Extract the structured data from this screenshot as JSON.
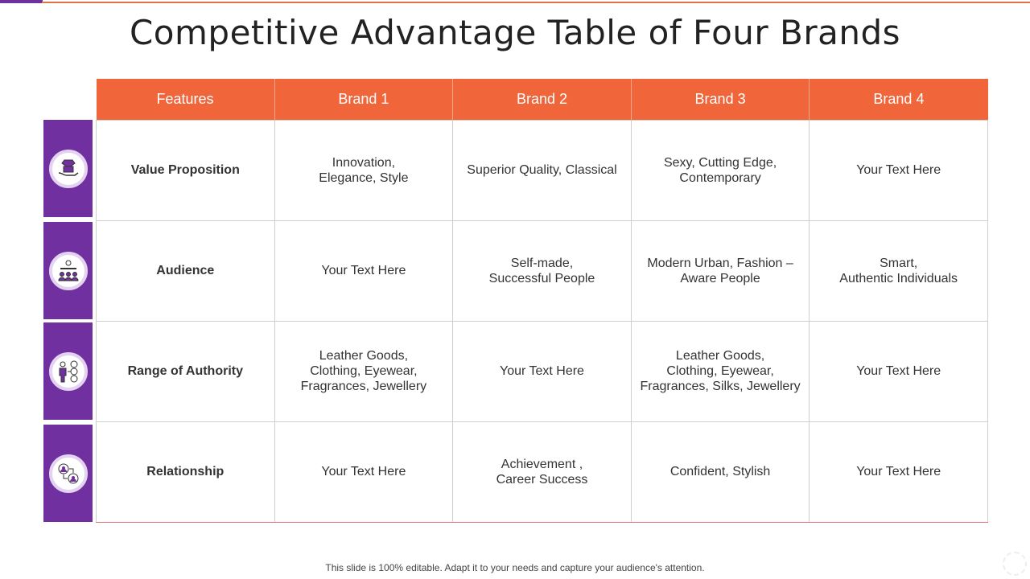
{
  "title": "Competitive Advantage Table of Four Brands",
  "colors": {
    "header": "#f0653a",
    "side_tabs": "#7030a0"
  },
  "table": {
    "headers": [
      "Features",
      "Brand 1",
      "Brand 2",
      "Brand 3",
      "Brand 4"
    ],
    "rows": [
      {
        "icon": "diamond-in-hand-icon",
        "cells": [
          "Value Proposition",
          "Innovation,\nElegance, Style",
          "Superior Quality, Classical",
          "Sexy, Cutting Edge,\nContemporary",
          "Your Text Here"
        ]
      },
      {
        "icon": "audience-presenter-icon",
        "cells": [
          "Audience",
          "Your Text Here",
          "Self-made,\nSuccessful People",
          "Modern Urban, Fashion –\nAware People",
          "Smart,\nAuthentic Individuals"
        ]
      },
      {
        "icon": "person-hierarchy-icon",
        "cells": [
          "Range  of Authority",
          "Leather Goods,\nClothing, Eyewear,\nFragrances, Jewellery",
          "Your Text Here",
          "Leather Goods,\nClothing, Eyewear,\nFragrances, Silks, Jewellery",
          "Your Text Here"
        ]
      },
      {
        "icon": "people-exchange-icon",
        "cells": [
          "Relationship",
          "Your Text Here",
          "Achievement ,\nCareer Success",
          "Confident, Stylish",
          "Your Text Here"
        ]
      }
    ]
  },
  "footer": "This slide is 100% editable. Adapt it to your needs and capture your audience's attention."
}
